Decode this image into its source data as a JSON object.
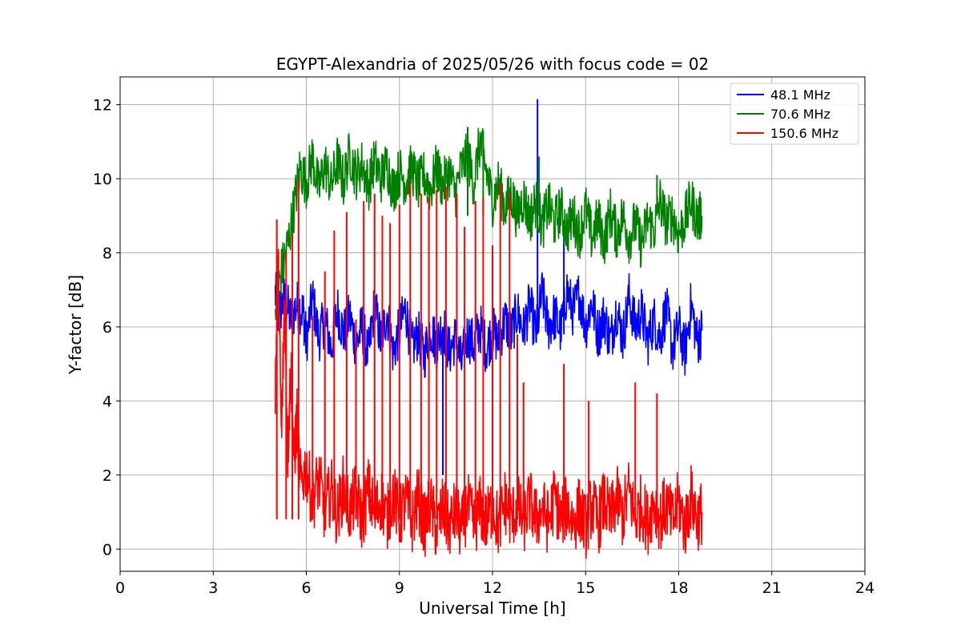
{
  "chart_data": {
    "type": "line",
    "title": "EGYPT-Alexandria of 2025/05/26 with focus code = 02",
    "xlabel": "Universal Time [h]",
    "ylabel": "Y-factor [dB]",
    "xlim": [
      0,
      24
    ],
    "ylim": [
      -0.6,
      12.75
    ],
    "xticks": [
      0,
      3,
      6,
      9,
      12,
      15,
      18,
      21,
      24
    ],
    "yticks": [
      0,
      2,
      4,
      6,
      8,
      10,
      12
    ],
    "grid": true,
    "legend_position": "top-right",
    "series": [
      {
        "name": " 48.1 MHz",
        "color": "#0000ff",
        "points": [
          [
            5.0,
            6.9
          ],
          [
            5.1,
            6.3
          ],
          [
            5.3,
            6.8
          ],
          [
            5.5,
            6.2
          ],
          [
            5.7,
            6.6
          ],
          [
            5.9,
            6.4
          ],
          [
            6.0,
            5.6
          ],
          [
            6.2,
            6.8
          ],
          [
            6.4,
            5.7
          ],
          [
            6.6,
            6.2
          ],
          [
            6.8,
            5.4
          ],
          [
            7.0,
            6.5
          ],
          [
            7.2,
            5.8
          ],
          [
            7.4,
            6.3
          ],
          [
            7.6,
            5.5
          ],
          [
            7.8,
            6.0
          ],
          [
            8.0,
            5.2
          ],
          [
            8.2,
            6.6
          ],
          [
            8.4,
            5.6
          ],
          [
            8.6,
            6.4
          ],
          [
            8.8,
            5.3
          ],
          [
            9.0,
            5.9
          ],
          [
            9.2,
            6.5
          ],
          [
            9.4,
            5.4
          ],
          [
            9.6,
            5.8
          ],
          [
            9.8,
            5.2
          ],
          [
            10.0,
            6.0
          ],
          [
            10.2,
            5.5
          ],
          [
            10.4,
            6.1
          ],
          [
            10.6,
            5.3
          ],
          [
            10.8,
            5.7
          ],
          [
            11.0,
            5.0
          ],
          [
            11.2,
            5.8
          ],
          [
            11.4,
            5.5
          ],
          [
            11.6,
            6.0
          ],
          [
            11.8,
            5.4
          ],
          [
            12.0,
            5.9
          ],
          [
            12.2,
            5.6
          ],
          [
            12.4,
            6.2
          ],
          [
            12.6,
            5.8
          ],
          [
            12.8,
            6.4
          ],
          [
            13.0,
            5.9
          ],
          [
            13.2,
            6.6
          ],
          [
            13.4,
            5.8
          ],
          [
            13.6,
            6.9
          ],
          [
            13.8,
            6.0
          ],
          [
            14.0,
            6.3
          ],
          [
            14.2,
            5.9
          ],
          [
            14.4,
            7.0
          ],
          [
            14.6,
            6.4
          ],
          [
            14.8,
            6.9
          ],
          [
            15.0,
            6.0
          ],
          [
            15.2,
            6.7
          ],
          [
            15.4,
            5.8
          ],
          [
            15.6,
            6.3
          ],
          [
            15.8,
            5.6
          ],
          [
            16.0,
            6.5
          ],
          [
            16.2,
            5.7
          ],
          [
            16.4,
            6.8
          ],
          [
            16.6,
            6.0
          ],
          [
            16.8,
            6.4
          ],
          [
            17.0,
            5.6
          ],
          [
            17.2,
            6.2
          ],
          [
            17.4,
            5.7
          ],
          [
            17.6,
            6.5
          ],
          [
            17.8,
            5.4
          ],
          [
            18.0,
            6.0
          ],
          [
            18.2,
            5.3
          ],
          [
            18.4,
            6.6
          ],
          [
            18.6,
            5.6
          ],
          [
            18.75,
            5.9
          ]
        ],
        "spikes": [
          [
            13.45,
            12.15
          ],
          [
            14.3,
            8.7
          ],
          [
            10.4,
            2.0
          ]
        ]
      },
      {
        "name": " 70.6 MHz",
        "color": "#008000",
        "points": [
          [
            5.0,
            6.5
          ],
          [
            5.2,
            7.5
          ],
          [
            5.4,
            8.2
          ],
          [
            5.6,
            9.2
          ],
          [
            5.8,
            10.3
          ],
          [
            6.0,
            9.9
          ],
          [
            6.2,
            10.6
          ],
          [
            6.4,
            9.7
          ],
          [
            6.6,
            10.4
          ],
          [
            6.8,
            9.8
          ],
          [
            7.0,
            10.5
          ],
          [
            7.2,
            9.9
          ],
          [
            7.4,
            10.7
          ],
          [
            7.6,
            10.1
          ],
          [
            7.8,
            10.4
          ],
          [
            8.0,
            9.8
          ],
          [
            8.2,
            10.5
          ],
          [
            8.4,
            10.0
          ],
          [
            8.6,
            10.4
          ],
          [
            8.8,
            9.7
          ],
          [
            9.0,
            10.2
          ],
          [
            9.2,
            9.9
          ],
          [
            9.4,
            10.3
          ],
          [
            9.6,
            9.8
          ],
          [
            9.8,
            10.1
          ],
          [
            10.0,
            9.7
          ],
          [
            10.2,
            10.3
          ],
          [
            10.4,
            9.8
          ],
          [
            10.6,
            10.2
          ],
          [
            10.8,
            9.6
          ],
          [
            11.0,
            10.3
          ],
          [
            11.2,
            10.6
          ],
          [
            11.4,
            9.9
          ],
          [
            11.6,
            11.0
          ],
          [
            11.8,
            10.2
          ],
          [
            12.0,
            9.4
          ],
          [
            12.2,
            9.9
          ],
          [
            12.4,
            9.2
          ],
          [
            12.6,
            9.6
          ],
          [
            12.8,
            9.0
          ],
          [
            13.0,
            9.5
          ],
          [
            13.2,
            8.9
          ],
          [
            13.4,
            9.4
          ],
          [
            13.6,
            8.7
          ],
          [
            13.8,
            9.3
          ],
          [
            14.0,
            8.8
          ],
          [
            14.2,
            9.2
          ],
          [
            14.4,
            8.6
          ],
          [
            14.6,
            9.0
          ],
          [
            14.8,
            8.5
          ],
          [
            15.0,
            9.2
          ],
          [
            15.2,
            8.4
          ],
          [
            15.4,
            8.9
          ],
          [
            15.6,
            8.3
          ],
          [
            15.8,
            9.1
          ],
          [
            16.0,
            8.5
          ],
          [
            16.2,
            9.0
          ],
          [
            16.4,
            8.4
          ],
          [
            16.6,
            8.8
          ],
          [
            16.8,
            8.2
          ],
          [
            17.0,
            8.9
          ],
          [
            17.2,
            8.6
          ],
          [
            17.4,
            9.4
          ],
          [
            17.6,
            8.8
          ],
          [
            17.8,
            9.0
          ],
          [
            18.0,
            8.5
          ],
          [
            18.2,
            8.9
          ],
          [
            18.4,
            9.4
          ],
          [
            18.6,
            8.9
          ],
          [
            18.75,
            9.0
          ]
        ],
        "spikes": [
          [
            11.2,
            11.4
          ],
          [
            11.7,
            11.3
          ],
          [
            13.5,
            10.6
          ],
          [
            17.3,
            10.1
          ]
        ]
      },
      {
        "name": " 150.6 MHz",
        "color": "#ff0000",
        "points": [
          [
            5.0,
            4.5
          ],
          [
            5.1,
            7.5
          ],
          [
            5.2,
            3.0
          ],
          [
            5.3,
            6.8
          ],
          [
            5.4,
            2.5
          ],
          [
            5.5,
            5.0
          ],
          [
            5.6,
            2.4
          ],
          [
            5.7,
            3.5
          ],
          [
            5.8,
            1.8
          ],
          [
            6.0,
            2.2
          ],
          [
            6.2,
            1.3
          ],
          [
            6.4,
            1.9
          ],
          [
            6.6,
            1.0
          ],
          [
            6.8,
            1.6
          ],
          [
            7.0,
            0.9
          ],
          [
            7.2,
            1.7
          ],
          [
            7.4,
            1.0
          ],
          [
            7.6,
            1.5
          ],
          [
            7.8,
            0.8
          ],
          [
            8.0,
            1.6
          ],
          [
            8.2,
            0.9
          ],
          [
            8.4,
            1.4
          ],
          [
            8.6,
            0.8
          ],
          [
            8.8,
            1.5
          ],
          [
            9.0,
            0.8
          ],
          [
            9.2,
            1.3
          ],
          [
            9.4,
            0.7
          ],
          [
            9.6,
            1.4
          ],
          [
            9.8,
            0.6
          ],
          [
            10.0,
            1.2
          ],
          [
            10.2,
            0.5
          ],
          [
            10.4,
            1.1
          ],
          [
            10.6,
            0.6
          ],
          [
            10.8,
            1.0
          ],
          [
            11.0,
            0.5
          ],
          [
            11.2,
            1.2
          ],
          [
            11.4,
            0.6
          ],
          [
            11.6,
            1.1
          ],
          [
            11.8,
            0.7
          ],
          [
            12.0,
            1.2
          ],
          [
            12.2,
            0.6
          ],
          [
            12.4,
            1.3
          ],
          [
            12.6,
            0.8
          ],
          [
            12.8,
            1.2
          ],
          [
            13.0,
            0.7
          ],
          [
            13.2,
            1.3
          ],
          [
            13.4,
            0.8
          ],
          [
            13.6,
            1.1
          ],
          [
            13.8,
            0.7
          ],
          [
            14.0,
            1.4
          ],
          [
            14.2,
            0.8
          ],
          [
            14.4,
            1.2
          ],
          [
            14.6,
            0.7
          ],
          [
            14.8,
            1.1
          ],
          [
            15.0,
            0.6
          ],
          [
            15.2,
            1.2
          ],
          [
            15.4,
            0.7
          ],
          [
            15.6,
            1.3
          ],
          [
            15.8,
            0.8
          ],
          [
            16.0,
            1.4
          ],
          [
            16.2,
            0.9
          ],
          [
            16.4,
            1.6
          ],
          [
            16.6,
            0.8
          ],
          [
            16.8,
            1.2
          ],
          [
            17.0,
            0.7
          ],
          [
            17.2,
            1.3
          ],
          [
            17.4,
            0.8
          ],
          [
            17.6,
            1.2
          ],
          [
            17.8,
            0.7
          ],
          [
            18.0,
            1.3
          ],
          [
            18.2,
            0.6
          ],
          [
            18.4,
            1.4
          ],
          [
            18.6,
            0.8
          ],
          [
            18.75,
            1.0
          ]
        ],
        "spikes": [
          [
            5.05,
            8.9
          ],
          [
            5.35,
            8.0
          ],
          [
            5.55,
            8.5
          ],
          [
            5.75,
            10.0
          ],
          [
            6.2,
            6.3
          ],
          [
            6.6,
            7.5
          ],
          [
            6.9,
            8.6
          ],
          [
            7.3,
            9.1
          ],
          [
            7.6,
            6.2
          ],
          [
            7.85,
            9.4
          ],
          [
            8.2,
            9.6
          ],
          [
            8.45,
            9.0
          ],
          [
            8.7,
            8.8
          ],
          [
            9.0,
            9.3
          ],
          [
            9.35,
            9.9
          ],
          [
            9.7,
            9.6
          ],
          [
            9.95,
            9.5
          ],
          [
            10.2,
            9.7
          ],
          [
            10.5,
            9.8
          ],
          [
            10.85,
            9.6
          ],
          [
            11.1,
            8.7
          ],
          [
            11.45,
            9.4
          ],
          [
            11.7,
            9.5
          ],
          [
            12.0,
            8.2
          ],
          [
            12.25,
            9.9
          ],
          [
            12.55,
            9.6
          ],
          [
            12.8,
            5.8
          ],
          [
            13.0,
            4.5
          ],
          [
            14.3,
            5.0
          ],
          [
            15.1,
            4.0
          ],
          [
            16.6,
            4.5
          ],
          [
            17.3,
            4.2
          ]
        ]
      }
    ]
  }
}
